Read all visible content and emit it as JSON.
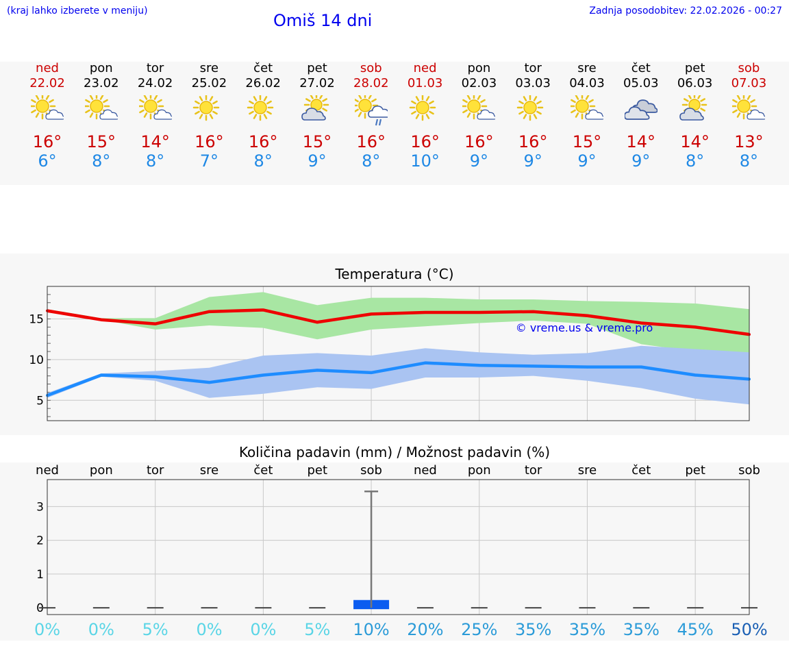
{
  "header": {
    "hint": "(kraj lahko izberete v meniju)",
    "title": "Omiš 14 dni",
    "updated": "Zadnja posodobitev: 22.02.2026 - 00:27"
  },
  "forecast": [
    {
      "day": "ned",
      "date": "22.02",
      "icon": "sun-cloud-icon",
      "max": "16°",
      "min": "6°",
      "weekend": true
    },
    {
      "day": "pon",
      "date": "23.02",
      "icon": "sun-cloud-icon",
      "max": "15°",
      "min": "8°",
      "weekend": false
    },
    {
      "day": "tor",
      "date": "24.02",
      "icon": "sun-cloud-icon",
      "max": "14°",
      "min": "8°",
      "weekend": false
    },
    {
      "day": "sre",
      "date": "25.02",
      "icon": "sun-icon",
      "max": "16°",
      "min": "7°",
      "weekend": false
    },
    {
      "day": "čet",
      "date": "26.02",
      "icon": "sun-icon",
      "max": "16°",
      "min": "8°",
      "weekend": false
    },
    {
      "day": "pet",
      "date": "27.02",
      "icon": "cloud-sun-icon",
      "max": "15°",
      "min": "9°",
      "weekend": false
    },
    {
      "day": "sob",
      "date": "28.02",
      "icon": "sun-cloud-rain-icon",
      "max": "16°",
      "min": "8°",
      "weekend": true
    },
    {
      "day": "ned",
      "date": "01.03",
      "icon": "sun-icon",
      "max": "16°",
      "min": "10°",
      "weekend": true
    },
    {
      "day": "pon",
      "date": "02.03",
      "icon": "sun-cloud-icon",
      "max": "16°",
      "min": "9°",
      "weekend": false
    },
    {
      "day": "tor",
      "date": "03.03",
      "icon": "sun-icon",
      "max": "16°",
      "min": "9°",
      "weekend": false
    },
    {
      "day": "sre",
      "date": "04.03",
      "icon": "sun-cloud-icon",
      "max": "15°",
      "min": "9°",
      "weekend": false
    },
    {
      "day": "čet",
      "date": "05.03",
      "icon": "cloudy-icon",
      "max": "14°",
      "min": "9°",
      "weekend": false
    },
    {
      "day": "pet",
      "date": "06.03",
      "icon": "cloud-sun-icon",
      "max": "14°",
      "min": "8°",
      "weekend": false
    },
    {
      "day": "sob",
      "date": "07.03",
      "icon": "sun-cloud-icon",
      "max": "13°",
      "min": "8°",
      "weekend": true
    }
  ],
  "colors": {
    "max_line": "#ee0000",
    "min_line": "#1e8cff",
    "max_band": "#a8e6a3",
    "min_band": "#aac4f2",
    "precip_bar": "#0b5cf0",
    "weekend": "#cc0000",
    "tmax_text": "#cc0000",
    "tmin_text": "#1e88e5"
  },
  "chart_data": [
    {
      "type": "line",
      "title": "Temperatura (°C)",
      "watermark": "© vreme.us & vreme.pro",
      "yticks": [
        5,
        10,
        15
      ],
      "ylim": [
        2.5,
        19
      ],
      "series": [
        {
          "name": "max",
          "values": [
            16.0,
            14.9,
            14.4,
            15.9,
            16.1,
            14.6,
            15.6,
            15.8,
            15.8,
            15.9,
            15.4,
            14.5,
            14.0,
            13.1
          ]
        },
        {
          "name": "min",
          "values": [
            5.6,
            8.1,
            7.9,
            7.2,
            8.1,
            8.7,
            8.4,
            9.6,
            9.3,
            9.2,
            9.1,
            9.1,
            8.1,
            7.6
          ]
        }
      ],
      "max_band": {
        "upper": [
          16.2,
          15.1,
          15.1,
          17.7,
          18.3,
          16.7,
          17.6,
          17.6,
          17.4,
          17.4,
          17.2,
          17.1,
          16.9,
          16.2
        ],
        "lower": [
          15.8,
          14.9,
          13.7,
          14.2,
          13.9,
          12.5,
          13.7,
          14.1,
          14.5,
          14.8,
          14.4,
          11.9,
          11.0,
          10.2
        ]
      },
      "min_band": {
        "upper": [
          5.9,
          8.3,
          8.6,
          9.0,
          10.5,
          10.8,
          10.5,
          11.4,
          10.9,
          10.6,
          10.8,
          11.7,
          11.3,
          10.9
        ],
        "lower": [
          5.3,
          7.9,
          7.4,
          5.3,
          5.8,
          6.6,
          6.4,
          7.8,
          7.8,
          8.0,
          7.4,
          6.5,
          5.2,
          4.5
        ]
      }
    },
    {
      "type": "bar",
      "title": "Količina padavin (mm) / Možnost padavin (%)",
      "categories": [
        "ned",
        "pon",
        "tor",
        "sre",
        "čet",
        "pet",
        "sob",
        "ned",
        "pon",
        "tor",
        "sre",
        "čet",
        "pet",
        "sob"
      ],
      "values": [
        0,
        0,
        0,
        0,
        0,
        0,
        0.15,
        0,
        0,
        0,
        0,
        0,
        0,
        0
      ],
      "error_max": [
        0,
        0,
        0,
        0,
        0,
        0,
        3.45,
        0,
        0,
        0,
        0,
        0,
        0,
        0
      ],
      "yticks": [
        0,
        1,
        2,
        3
      ],
      "ylim": [
        -0.2,
        3.8
      ],
      "probability": [
        "0%",
        "0%",
        "5%",
        "0%",
        "0%",
        "5%",
        "10%",
        "20%",
        "25%",
        "35%",
        "35%",
        "35%",
        "45%",
        "50%"
      ]
    }
  ]
}
